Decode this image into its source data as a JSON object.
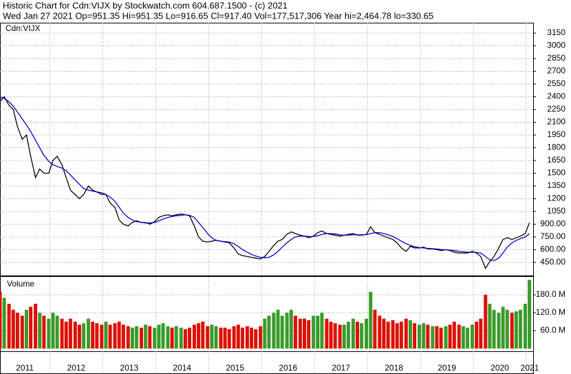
{
  "header": {
    "title": "Historic Chart for Cdn:VIJX by Stockwatch.com 604.687.1500 - (c) 2021",
    "info": "Wed Jan 27 2021   Op=951.35   Hi=951.35   Lo=916.65   Cl=917.40   Vol=177,517,306   Year hi=2,464.78   lo=330.65"
  },
  "chart_data": [
    {
      "type": "line",
      "label": "Cdn:VIJX",
      "x": [
        2011.06,
        2011.14,
        2011.23,
        2011.31,
        2011.39,
        2011.48,
        2011.56,
        2011.64,
        2011.73,
        2011.81,
        2011.89,
        2011.98,
        2012.06,
        2012.14,
        2012.23,
        2012.31,
        2012.39,
        2012.48,
        2012.56,
        2012.64,
        2012.73,
        2012.81,
        2012.89,
        2012.98,
        2013.06,
        2013.14,
        2013.23,
        2013.31,
        2013.39,
        2013.48,
        2013.56,
        2013.64,
        2013.73,
        2013.81,
        2013.89,
        2013.98,
        2014.06,
        2014.14,
        2014.23,
        2014.31,
        2014.39,
        2014.48,
        2014.56,
        2014.64,
        2014.73,
        2014.81,
        2014.89,
        2014.98,
        2015.06,
        2015.14,
        2015.23,
        2015.31,
        2015.39,
        2015.48,
        2015.56,
        2015.64,
        2015.73,
        2015.81,
        2015.89,
        2015.98,
        2016.06,
        2016.14,
        2016.23,
        2016.31,
        2016.39,
        2016.48,
        2016.56,
        2016.64,
        2016.73,
        2016.81,
        2016.89,
        2016.98,
        2017.06,
        2017.14,
        2017.23,
        2017.31,
        2017.39,
        2017.48,
        2017.56,
        2017.64,
        2017.73,
        2017.81,
        2017.89,
        2017.98,
        2018.06,
        2018.14,
        2018.23,
        2018.31,
        2018.39,
        2018.48,
        2018.56,
        2018.64,
        2018.73,
        2018.81,
        2018.89,
        2018.98,
        2019.06,
        2019.14,
        2019.23,
        2019.31,
        2019.39,
        2019.48,
        2019.56,
        2019.64,
        2019.73,
        2019.81,
        2019.89,
        2019.98,
        2020.06,
        2020.14,
        2020.23,
        2020.31,
        2020.39,
        2020.48,
        2020.56,
        2020.64,
        2020.73,
        2020.81,
        2020.89,
        2020.98,
        2021.06
      ],
      "series": [
        {
          "name": "Cdn:VIJX",
          "color": "#000000",
          "values": [
            2350,
            2400,
            2300,
            2250,
            2050,
            1900,
            1950,
            1700,
            1450,
            1550,
            1500,
            1500,
            1650,
            1700,
            1600,
            1450,
            1300,
            1250,
            1200,
            1250,
            1350,
            1300,
            1280,
            1250,
            1250,
            1150,
            1100,
            950,
            900,
            880,
            920,
            940,
            920,
            920,
            900,
            930,
            980,
            1000,
            1010,
            1000,
            1010,
            1020,
            1010,
            1000,
            880,
            750,
            700,
            690,
            700,
            710,
            700,
            690,
            680,
            620,
            550,
            530,
            520,
            510,
            500,
            490,
            520,
            580,
            650,
            700,
            720,
            780,
            810,
            790,
            770,
            760,
            740,
            760,
            800,
            820,
            790,
            780,
            770,
            760,
            770,
            780,
            790,
            770,
            770,
            780,
            870,
            800,
            780,
            760,
            740,
            720,
            680,
            620,
            580,
            640,
            620,
            620,
            630,
            610,
            610,
            600,
            590,
            600,
            590,
            570,
            560,
            560,
            560,
            580,
            560,
            520,
            380,
            460,
            520,
            620,
            720,
            740,
            720,
            740,
            760,
            790,
            917.4
          ]
        },
        {
          "color": "#0000cc",
          "values": [
            2400,
            2380,
            2340,
            2290,
            2220,
            2140,
            2070,
            1990,
            1890,
            1800,
            1710,
            1640,
            1600,
            1580,
            1560,
            1530,
            1480,
            1420,
            1370,
            1320,
            1300,
            1290,
            1280,
            1270,
            1250,
            1220,
            1170,
            1100,
            1030,
            980,
            950,
            930,
            920,
            915,
            915,
            920,
            940,
            960,
            980,
            990,
            1000,
            1005,
            1010,
            1005,
            980,
            920,
            860,
            790,
            740,
            710,
            700,
            695,
            690,
            670,
            640,
            600,
            570,
            545,
            525,
            510,
            505,
            510,
            540,
            580,
            630,
            680,
            720,
            750,
            760,
            760,
            755,
            755,
            765,
            780,
            790,
            790,
            785,
            775,
            770,
            772,
            775,
            775,
            775,
            778,
            790,
            800,
            800,
            790,
            775,
            755,
            730,
            700,
            670,
            650,
            635,
            625,
            620,
            615,
            612,
            608,
            602,
            600,
            595,
            590,
            580,
            575,
            570,
            570,
            568,
            560,
            520,
            480,
            470,
            500,
            560,
            630,
            680,
            710,
            730,
            750,
            790
          ]
        }
      ],
      "xlim": [
        2011.06,
        2021.13
      ],
      "xticks": [
        2011,
        2012,
        2013,
        2014,
        2015,
        2016,
        2017,
        2018,
        2019,
        2020,
        2021
      ],
      "ylim": [
        296,
        3272
      ],
      "yticks": [
        {
          "value": 450,
          "label": "450.00"
        },
        {
          "value": 600,
          "label": "600.00"
        },
        {
          "value": 750,
          "label": "750.00"
        },
        {
          "value": 900,
          "label": "900.00"
        },
        1050,
        1200,
        1350,
        1500,
        1650,
        1800,
        1950,
        2100,
        2250,
        2400,
        2550,
        2700,
        2850,
        3000,
        3150
      ],
      "grid": true
    },
    {
      "type": "bar",
      "label": "Volume",
      "values": [
        190,
        170,
        150,
        130,
        120,
        110,
        130,
        140,
        150,
        120,
        110,
        100,
        120,
        110,
        100,
        90,
        100,
        90,
        80,
        85,
        100,
        90,
        85,
        80,
        90,
        80,
        85,
        90,
        80,
        75,
        70,
        75,
        70,
        80,
        75,
        70,
        80,
        85,
        75,
        70,
        75,
        70,
        65,
        70,
        80,
        85,
        90,
        75,
        80,
        75,
        70,
        70,
        65,
        75,
        80,
        70,
        75,
        70,
        65,
        75,
        100,
        110,
        120,
        130,
        110,
        120,
        130,
        110,
        100,
        100,
        95,
        110,
        110,
        120,
        100,
        90,
        85,
        80,
        80,
        90,
        100,
        90,
        85,
        100,
        190,
        130,
        110,
        100,
        90,
        95,
        85,
        90,
        100,
        95,
        85,
        80,
        85,
        80,
        75,
        75,
        70,
        75,
        80,
        90,
        80,
        75,
        70,
        80,
        90,
        100,
        180,
        150,
        130,
        120,
        140,
        130,
        120,
        125,
        130,
        150,
        230
      ],
      "up_color": "#3a9a2a",
      "down_color": "#dd1100",
      "ylim": [
        -9,
        240
      ],
      "yticks": [
        {
          "value": 60,
          "label": "60.0 M"
        },
        {
          "value": 120,
          "label": "120.0 M"
        },
        {
          "value": 180,
          "label": "180.0 M"
        }
      ],
      "grid": true
    }
  ]
}
